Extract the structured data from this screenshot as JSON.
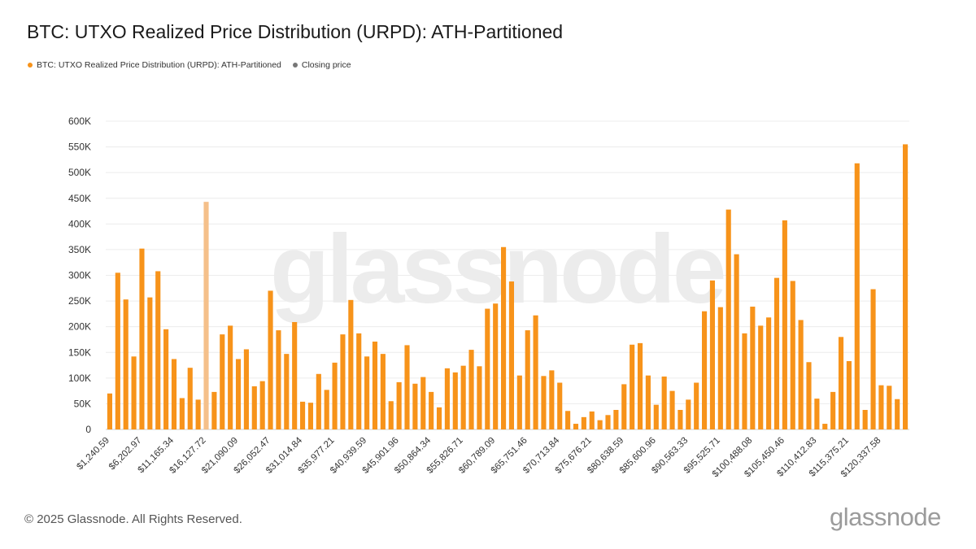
{
  "title": "BTC: UTXO Realized Price Distribution (URPD): ATH-Partitioned",
  "legend": [
    {
      "label": "BTC: UTXO Realized Price Distribution (URPD): ATH-Partitioned",
      "color": "#f7931a"
    },
    {
      "label": "Closing price",
      "color": "#777777"
    }
  ],
  "footer": "© 2025 Glassnode. All Rights Reserved.",
  "logo": "glassnode",
  "watermark": "glassnode",
  "chart_data": {
    "type": "bar",
    "x_tick_labels": [
      "$1,240.59",
      "$6,202.97",
      "$11,165.34",
      "$16,127.72",
      "$21,090.09",
      "$26,052.47",
      "$31,014.84",
      "$35,977.21",
      "$40,939.59",
      "$45,901.96",
      "$50,864.34",
      "$55,826.71",
      "$60,789.09",
      "$65,751.46",
      "$70,713.84",
      "$75,676.21",
      "$80,638.59",
      "$85,600.96",
      "$90,563.33",
      "$95,525.71",
      "$100,488.08",
      "$105,450.46",
      "$110,412.83",
      "$115,375.21",
      "$120,337.58"
    ],
    "x_tick_every": 4,
    "y_tick_labels": [
      "0",
      "50K",
      "100K",
      "150K",
      "200K",
      "250K",
      "300K",
      "350K",
      "400K",
      "450K",
      "500K",
      "550K",
      "600K"
    ],
    "ylim": [
      0,
      600000
    ],
    "grid": true,
    "legend_position": "top-left",
    "series_color": "#f7931a",
    "highlight_color": "#f5c08a",
    "closing_color": "#777777",
    "highlight_index": 12,
    "closing_index": 105,
    "values": [
      70000,
      305000,
      253000,
      142000,
      352000,
      257000,
      308000,
      195000,
      137000,
      61000,
      120000,
      58000,
      443000,
      73000,
      185000,
      202000,
      137000,
      156000,
      84000,
      94000,
      270000,
      193000,
      147000,
      209000,
      54000,
      52000,
      108000,
      77000,
      130000,
      185000,
      252000,
      187000,
      142000,
      171000,
      147000,
      55000,
      92000,
      164000,
      89000,
      102000,
      73000,
      43000,
      119000,
      111000,
      124000,
      155000,
      123000,
      235000,
      245000,
      355000,
      288000,
      105000,
      193000,
      222000,
      104000,
      115000,
      91000,
      36000,
      11000,
      24000,
      35000,
      18000,
      28000,
      38000,
      88000,
      165000,
      168000,
      105000,
      48000,
      103000,
      75000,
      38000,
      58000,
      91000,
      230000,
      290000,
      238000,
      428000,
      341000,
      187000,
      239000,
      202000,
      218000,
      295000,
      407000,
      289000,
      213000,
      131000,
      60000,
      11000,
      73000,
      180000,
      133000,
      518000,
      38000,
      273000,
      86000,
      85000,
      59000,
      555000
    ]
  }
}
